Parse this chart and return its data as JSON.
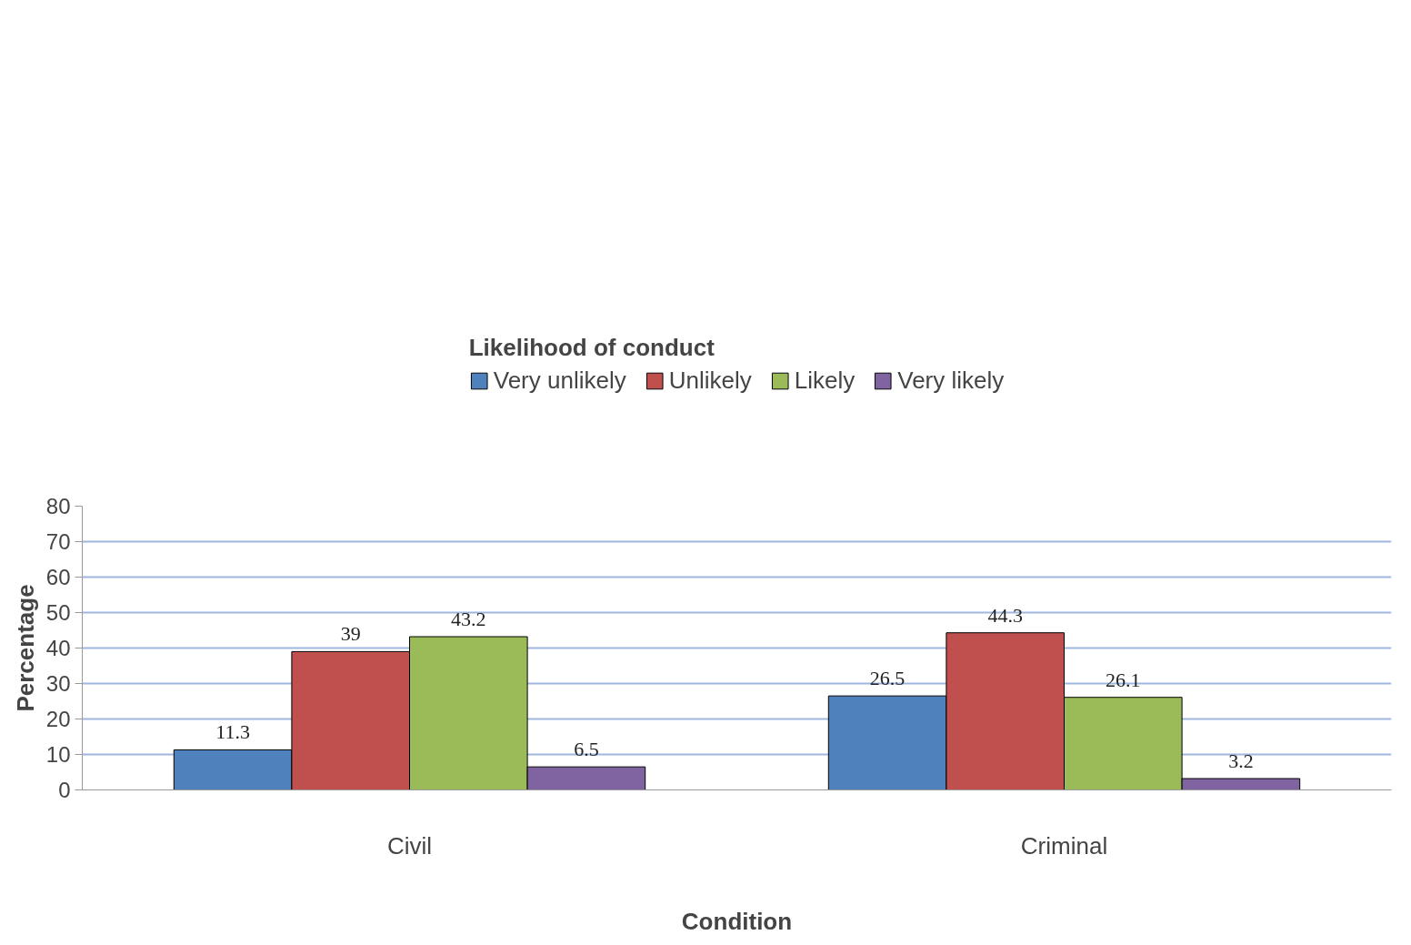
{
  "chart_data": {
    "type": "bar",
    "legend_title": "Likelihood of conduct",
    "xlabel": "Condition",
    "ylabel": "Percentage",
    "categories": [
      "Civil",
      "Criminal"
    ],
    "series": [
      {
        "name": "Very unlikely",
        "color": "#4f81bd",
        "values": [
          11.3,
          26.5
        ]
      },
      {
        "name": "Unlikely",
        "color": "#c0504d",
        "values": [
          39,
          44.3
        ]
      },
      {
        "name": "Likely",
        "color": "#9bbb59",
        "values": [
          43.2,
          26.1
        ]
      },
      {
        "name": "Very likely",
        "color": "#8064a2",
        "values": [
          6.5,
          3.2
        ]
      }
    ],
    "ylim": [
      0,
      80
    ],
    "yticks": [
      0,
      10,
      20,
      30,
      40,
      50,
      60,
      70,
      80
    ],
    "grid": "y",
    "legend": "top",
    "data_labels": true
  }
}
